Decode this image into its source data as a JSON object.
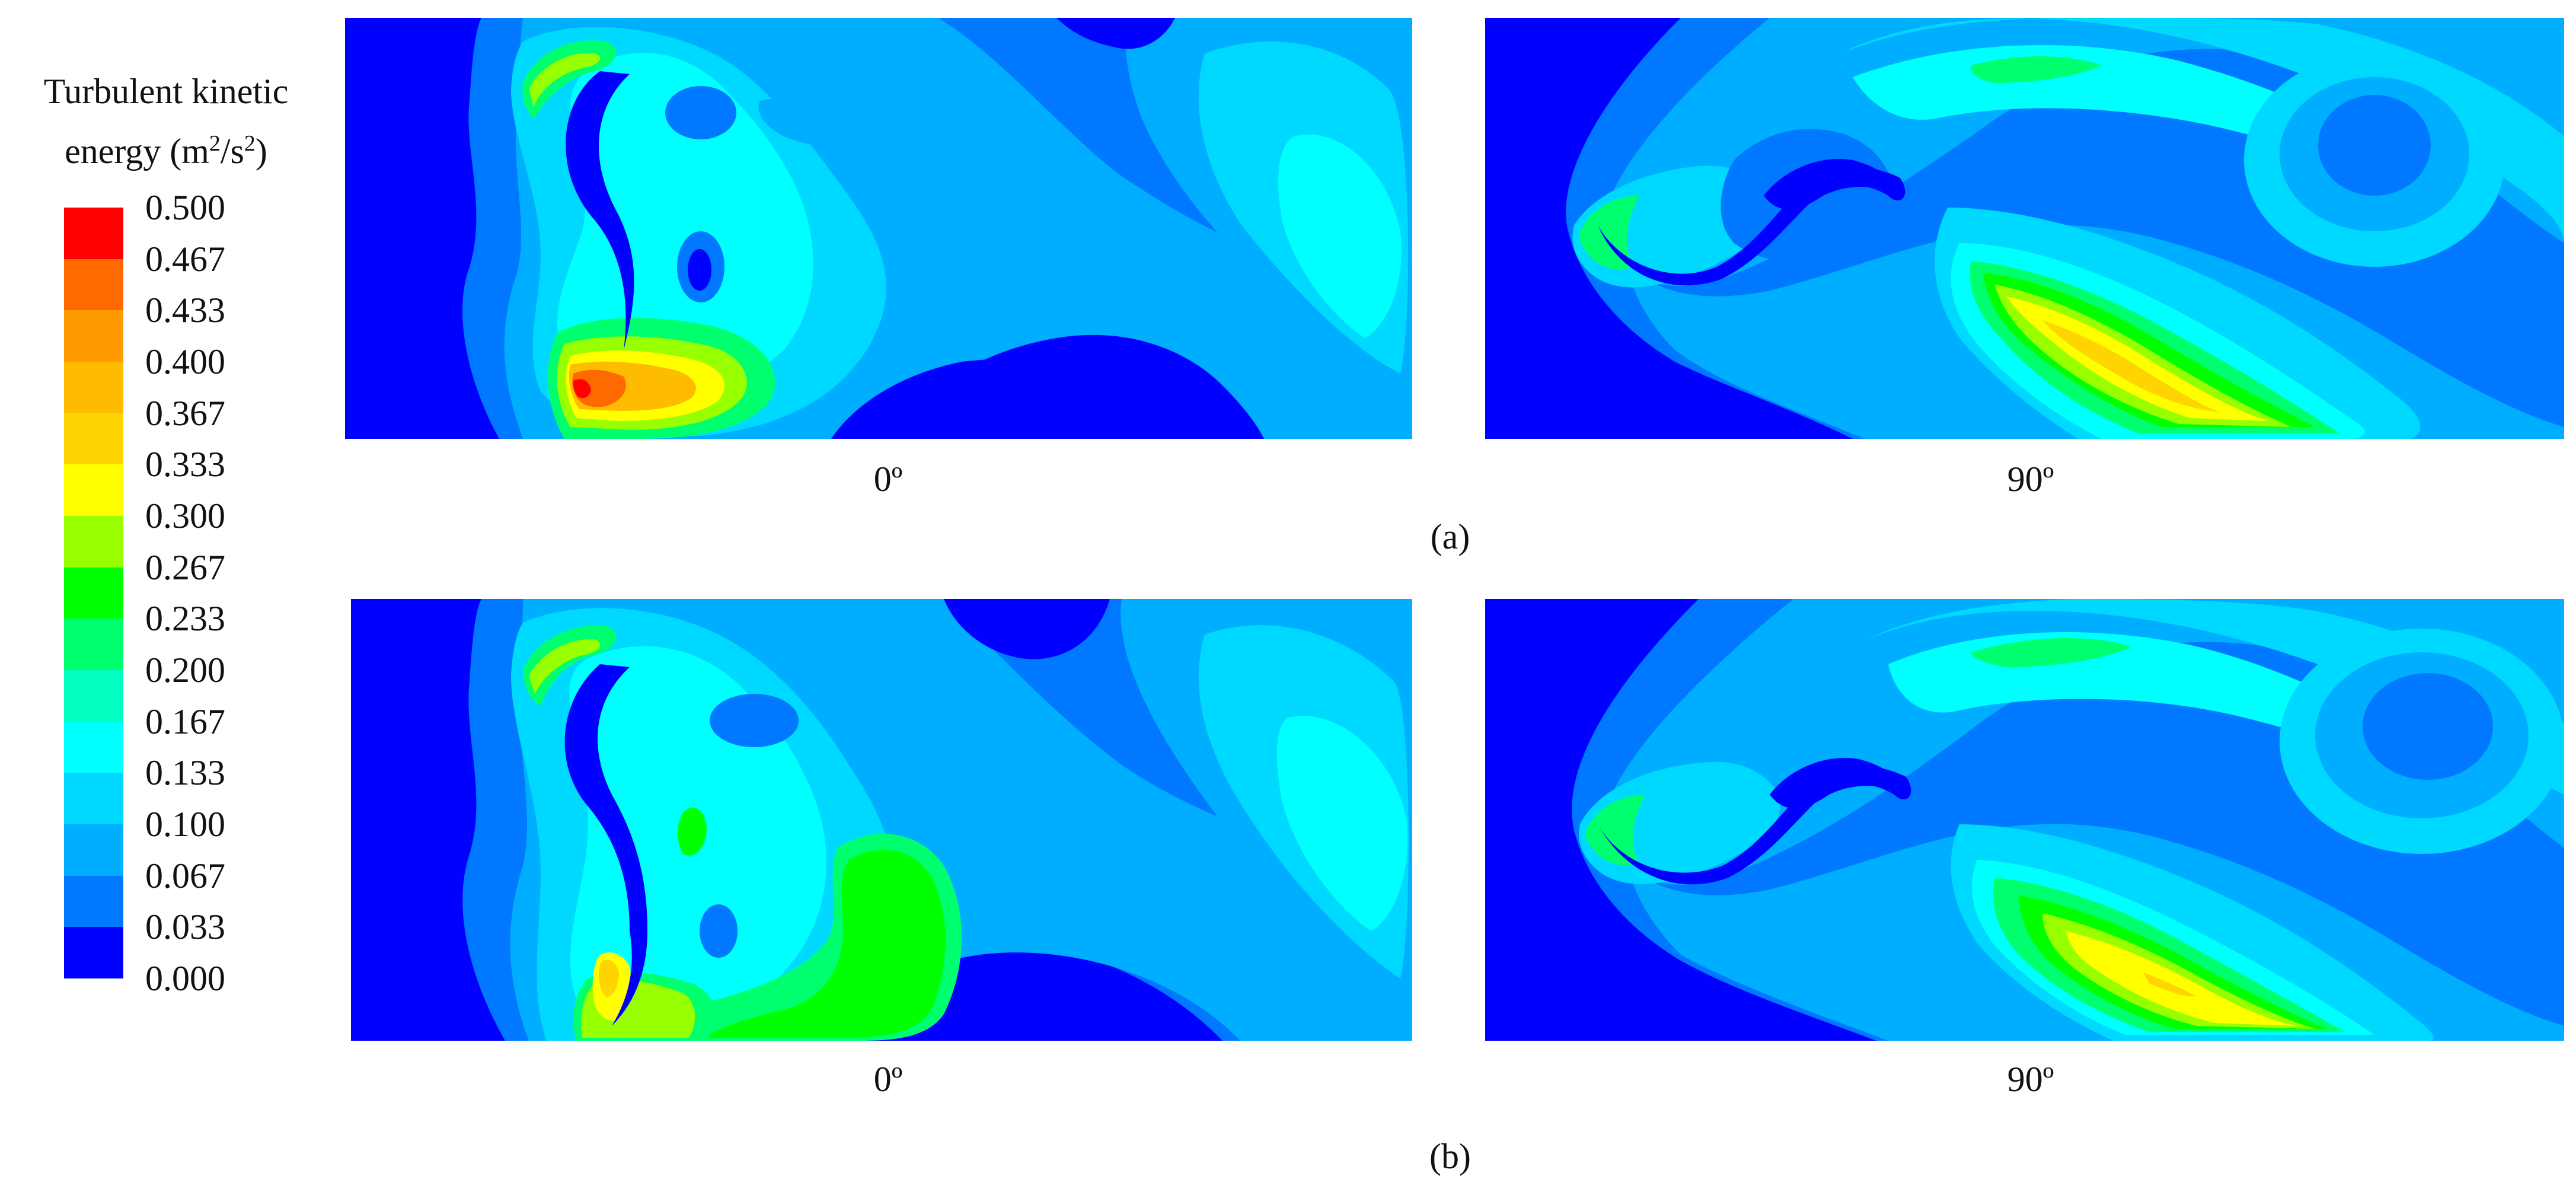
{
  "legend": {
    "title_line1": "Turbulent kinetic",
    "title_line2_prefix": "energy (m",
    "title_sup1": "2",
    "title_mid": "/s",
    "title_sup2": "2",
    "title_suffix": ")",
    "ticks": [
      "0.500",
      "0.467",
      "0.433",
      "0.400",
      "0.367",
      "0.333",
      "0.300",
      "0.267",
      "0.233",
      "0.200",
      "0.167",
      "0.133",
      "0.100",
      "0.067",
      "0.033",
      "0.000"
    ],
    "colors": [
      "#ff0000",
      "#ff6a00",
      "#ff9a00",
      "#ffbb00",
      "#ffd400",
      "#ffff00",
      "#98ff00",
      "#00ff00",
      "#00ff6e",
      "#00ffc0",
      "#00ffff",
      "#00d9ff",
      "#00aeff",
      "#0078ff",
      "#0000ff"
    ]
  },
  "panels": {
    "a_0": {
      "angle": "0º"
    },
    "a_90": {
      "angle": "90º"
    },
    "b_0": {
      "angle": "0º"
    },
    "b_90": {
      "angle": "90º"
    }
  },
  "rows": {
    "a": {
      "label": "(a)"
    },
    "b": {
      "label": "(b)"
    }
  }
}
